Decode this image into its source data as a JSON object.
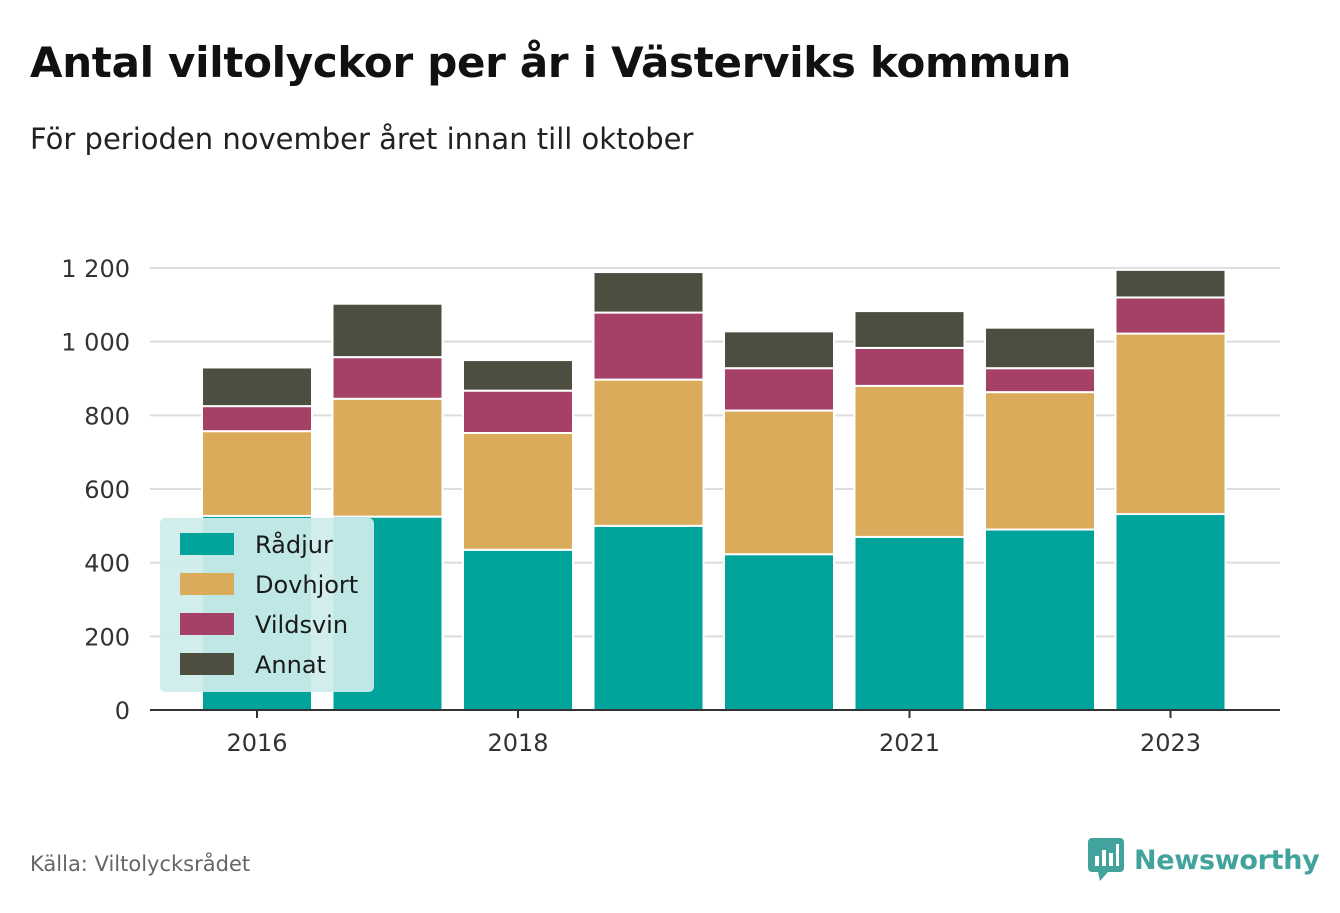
{
  "title": "Antal viltolyckor per år i Västerviks kommun",
  "subtitle": "För perioden november året innan till oktober",
  "source": "Källa: Viltolycksrådet",
  "brand": {
    "name": "Newsworthy",
    "icon": "newsworthy-logo-icon"
  },
  "colors": {
    "Rådjur": "#00a49a",
    "Dovhjort": "#d9ab5a",
    "Vildsvin": "#a54167",
    "Annat": "#4d4e40",
    "grid": "#dddddd",
    "axis": "#333333",
    "legend_bg": "#cdeceb"
  },
  "chart_data": {
    "type": "bar",
    "stacked": true,
    "x": [
      2016,
      2017,
      2018,
      2019,
      2020,
      2021,
      2022,
      2023
    ],
    "xticks": [
      "2016",
      "2018",
      "2021",
      "2023"
    ],
    "ylim": [
      0,
      1200
    ],
    "yticks": [
      0,
      200,
      400,
      600,
      800,
      1000,
      1200
    ],
    "ytick_labels": [
      "0",
      "200",
      "400",
      "600",
      "800",
      "1 000",
      "1 200"
    ],
    "grid": true,
    "legend_position": "bottom-left",
    "series": [
      {
        "name": "Rådjur",
        "values": [
          527,
          525,
          435,
          500,
          423,
          470,
          490,
          532
        ]
      },
      {
        "name": "Dovhjort",
        "values": [
          230,
          320,
          317,
          397,
          390,
          410,
          373,
          490
        ]
      },
      {
        "name": "Vildsvin",
        "values": [
          68,
          113,
          115,
          182,
          115,
          103,
          65,
          98
        ]
      },
      {
        "name": "Annat",
        "values": [
          105,
          145,
          83,
          110,
          100,
          100,
          110,
          75
        ]
      }
    ]
  }
}
